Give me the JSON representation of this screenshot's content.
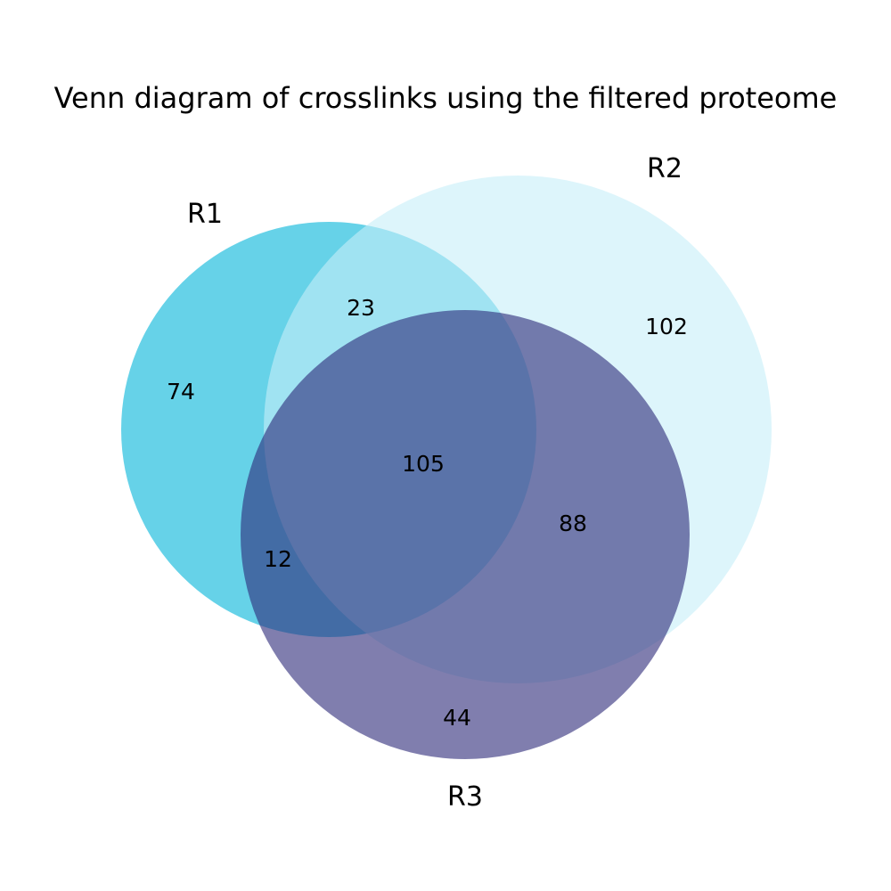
{
  "chart_data": {
    "type": "venn",
    "title": "Venn diagram of crosslinks using the filtered proteome",
    "sets": [
      {
        "name": "R1",
        "color": "#00b4d8"
      },
      {
        "name": "R2",
        "color": "#c6eef8"
      },
      {
        "name": "R3",
        "color": "#2c2878"
      }
    ],
    "regions": [
      {
        "sets": [
          "R1"
        ],
        "value": 74
      },
      {
        "sets": [
          "R2"
        ],
        "value": 102
      },
      {
        "sets": [
          "R3"
        ],
        "value": 44
      },
      {
        "sets": [
          "R1",
          "R2"
        ],
        "value": 23
      },
      {
        "sets": [
          "R1",
          "R3"
        ],
        "value": 12
      },
      {
        "sets": [
          "R2",
          "R3"
        ],
        "value": 88
      },
      {
        "sets": [
          "R1",
          "R2",
          "R3"
        ],
        "value": 105
      }
    ]
  }
}
